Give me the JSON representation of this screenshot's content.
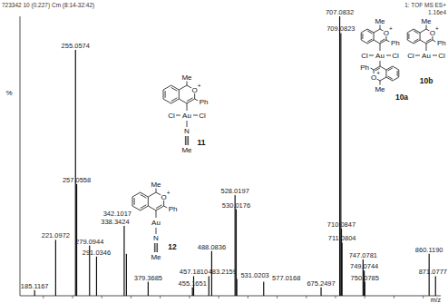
{
  "chart_data": {
    "type": "bar",
    "annotations": [
      "723342 10 (0.227) Cm (8:14-32:42)",
      "1: TOF MS ES+",
      "1.16e4"
    ],
    "x_label": "m/z",
    "y_label": "%",
    "x": [
      185.1167,
      221.0972,
      255.0574,
      257.0558,
      279.0944,
      291.0346,
      338.3424,
      342.1017,
      379.3685,
      455.1651,
      457.181,
      483.2159,
      488.0836,
      528.0197,
      530.0176,
      531.0203,
      577.0168,
      675.2497,
      707.0832,
      709.0823,
      710.0847,
      711.0804,
      747.0781,
      749.0744,
      750.0785,
      860.119,
      871.0777
    ],
    "values": [
      2,
      20,
      88,
      40,
      18,
      14,
      25,
      15,
      5,
      3,
      7,
      7,
      16,
      36,
      31,
      6,
      5,
      3,
      100,
      94,
      24,
      19,
      13,
      9,
      5,
      15,
      7
    ],
    "peak_labels": [
      "185.1167",
      "221.0972",
      "255.0574",
      "257.0558",
      "279.0944",
      "291.0346",
      "338.3424",
      "342.1017",
      "379.3685",
      "455.1651",
      "457.1810",
      "483.2159",
      "488.0836",
      "528.0197",
      "530.0176",
      "531.0203",
      "577.0168",
      "675.2497",
      "707.0832",
      "709.0823",
      "710.0847",
      "711.0804",
      "747.0781",
      "749.0744",
      "750.0785",
      "860.1190",
      "871.0777"
    ],
    "xlim": [
      160,
      880
    ],
    "xticks": [
      200,
      250,
      300,
      350,
      400,
      450,
      500,
      550,
      600,
      650,
      700,
      750,
      800,
      850
    ],
    "ylim": [
      0,
      100
    ],
    "color": "#111111",
    "grid": false,
    "tick_labels": false
  },
  "structures": [
    {
      "label": "11",
      "ligand": {
        "me": "Me",
        "o": "O",
        "charge": "+",
        "ph": "Ph"
      },
      "metal": "Au",
      "halides": [
        "Cl",
        "Cl"
      ],
      "nitrile": {
        "n": "N",
        "me": "Me"
      }
    },
    {
      "label": "12",
      "ligand": {
        "me": "Me",
        "o": "O",
        "charge": "+",
        "ph": "Ph"
      },
      "metal": "Au",
      "nitrile": {
        "n": "N",
        "me": "Me"
      }
    },
    {
      "label": "10a",
      "ligand": {
        "me": "Me",
        "o": "O",
        "charge": "+",
        "ph": "Ph"
      },
      "metal": "Au",
      "halides": [
        "Cl",
        "Cl"
      ],
      "ligand2": {
        "me": "Me",
        "o": "O",
        "charge": "+",
        "ph": "Ph"
      }
    },
    {
      "label": "10b",
      "ligand": {
        "me": "Me",
        "o": "O",
        "charge": "+",
        "ph": "Ph"
      },
      "metal": "Au",
      "halides": [
        "Cl",
        "Cl"
      ]
    }
  ]
}
